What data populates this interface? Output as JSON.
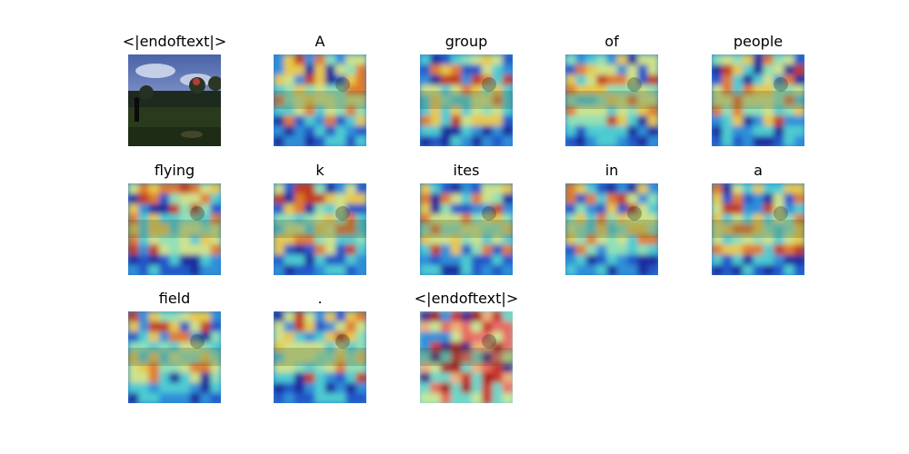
{
  "panels": [
    {
      "token": "<|endoftext|>",
      "kind": "photo"
    },
    {
      "token": "A",
      "kind": "heatmap"
    },
    {
      "token": "group",
      "kind": "heatmap"
    },
    {
      "token": "of",
      "kind": "heatmap"
    },
    {
      "token": "people",
      "kind": "heatmap"
    },
    {
      "token": "flying",
      "kind": "heatmap"
    },
    {
      "token": "k",
      "kind": "heatmap"
    },
    {
      "token": "ites",
      "kind": "heatmap"
    },
    {
      "token": "in",
      "kind": "heatmap"
    },
    {
      "token": "a",
      "kind": "heatmap"
    },
    {
      "token": "field",
      "kind": "heatmap"
    },
    {
      "token": ".",
      "kind": "heatmap"
    },
    {
      "token": "<|endoftext|>",
      "kind": "heatmap-warm"
    }
  ]
}
